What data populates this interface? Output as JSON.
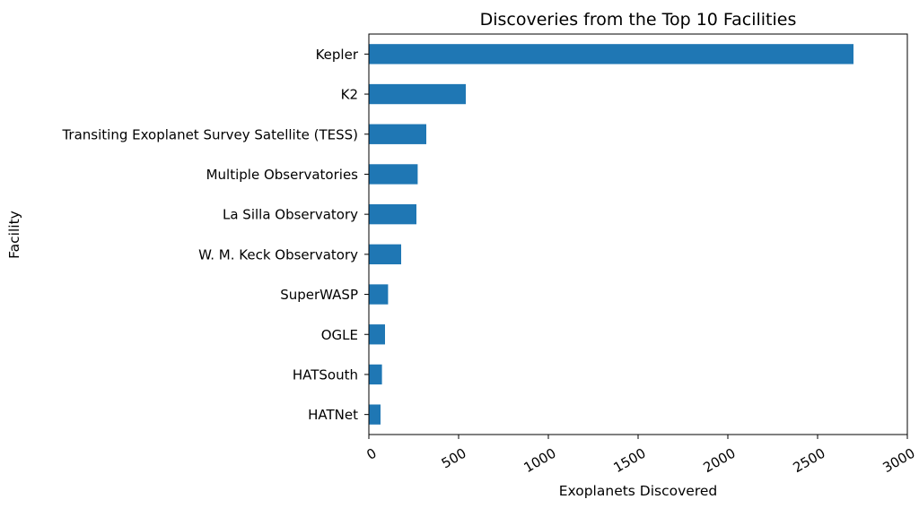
{
  "chart_data": {
    "type": "bar",
    "orientation": "horizontal",
    "title": "Discoveries from the Top 10 Facilities",
    "xlabel": "Exoplanets Discovered",
    "ylabel": "Facility",
    "categories": [
      "Kepler",
      "K2",
      "Transiting Exoplanet Survey Satellite (TESS)",
      "Multiple Observatories",
      "La Silla Observatory",
      "W. M. Keck Observatory",
      "SuperWASP",
      "OGLE",
      "HATSouth",
      "HATNet"
    ],
    "values": [
      2700,
      540,
      320,
      272,
      265,
      180,
      107,
      90,
      73,
      65
    ],
    "xlim": [
      0,
      3000
    ],
    "xticks": [
      "0",
      "500",
      "1000",
      "1500",
      "2000",
      "2500",
      "3000"
    ],
    "bar_color": "#1f77b4",
    "grid": false,
    "legend": "none"
  }
}
